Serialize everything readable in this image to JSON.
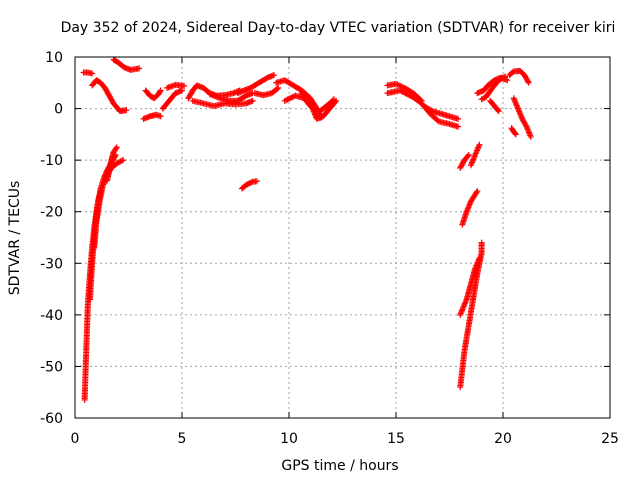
{
  "chart_data": {
    "type": "scatter",
    "title": "Day 352 of 2024, Sidereal Day-to-day VTEC variation (SDTVAR) for receiver kiri",
    "xlabel": "GPS time / hours",
    "ylabel": "SDTVAR / TECUs",
    "xlim": [
      0,
      25
    ],
    "ylim": [
      -60,
      10
    ],
    "xticks": [
      "0",
      "5",
      "10",
      "15",
      "20",
      "25"
    ],
    "yticks": [
      "10",
      "0",
      "-10",
      "-20",
      "-30",
      "-40",
      "-50",
      "-60"
    ],
    "grid": true,
    "marker": "plus",
    "color": "#ff0000",
    "tracks": [
      [
        [
          0.45,
          -56.5
        ],
        [
          0.5,
          -50
        ],
        [
          0.55,
          -44
        ],
        [
          0.6,
          -38
        ],
        [
          0.7,
          -32
        ],
        [
          0.8,
          -27
        ],
        [
          0.9,
          -23
        ],
        [
          1.0,
          -20
        ],
        [
          1.1,
          -17.5
        ],
        [
          1.2,
          -16
        ]
      ],
      [
        [
          0.7,
          -37
        ],
        [
          0.8,
          -30
        ],
        [
          0.9,
          -25
        ],
        [
          1.0,
          -21
        ],
        [
          1.1,
          -18
        ],
        [
          1.2,
          -15.5
        ],
        [
          1.35,
          -13.5
        ],
        [
          1.5,
          -12
        ],
        [
          1.7,
          -10.5
        ],
        [
          1.9,
          -9
        ]
      ],
      [
        [
          0.9,
          -27
        ],
        [
          1.0,
          -22
        ],
        [
          1.15,
          -18
        ],
        [
          1.3,
          -15
        ],
        [
          1.5,
          -13
        ],
        [
          1.7,
          -11.5
        ],
        [
          2.0,
          -10.5
        ],
        [
          2.25,
          -10
        ]
      ],
      [
        [
          1.5,
          -14
        ],
        [
          1.6,
          -12
        ],
        [
          1.7,
          -10
        ],
        [
          1.8,
          -8.5
        ],
        [
          1.95,
          -7.5
        ]
      ],
      [
        [
          0.4,
          7
        ],
        [
          0.6,
          7
        ],
        [
          0.8,
          6.8
        ]
      ],
      [
        [
          0.8,
          4.5
        ],
        [
          1.0,
          5.5
        ],
        [
          1.2,
          5
        ],
        [
          1.4,
          4
        ],
        [
          1.6,
          2.5
        ],
        [
          1.8,
          1
        ],
        [
          2.1,
          -0.5
        ],
        [
          2.4,
          -0.3
        ]
      ],
      [
        [
          1.8,
          9.5
        ],
        [
          2.0,
          9
        ],
        [
          2.3,
          8
        ],
        [
          2.6,
          7.5
        ],
        [
          3.0,
          7.8
        ]
      ],
      [
        [
          3.3,
          3.5
        ],
        [
          3.5,
          2.5
        ],
        [
          3.7,
          2
        ],
        [
          3.9,
          2.8
        ],
        [
          4.0,
          3.5
        ]
      ],
      [
        [
          3.2,
          -2
        ],
        [
          3.5,
          -1.5
        ],
        [
          3.8,
          -1.2
        ],
        [
          4.0,
          -1.5
        ]
      ],
      [
        [
          4.1,
          0
        ],
        [
          4.4,
          1.5
        ],
        [
          4.7,
          3
        ],
        [
          5.0,
          3.5
        ]
      ],
      [
        [
          4.3,
          4
        ],
        [
          4.7,
          4.6
        ],
        [
          5.1,
          4.4
        ]
      ],
      [
        [
          5.3,
          2
        ],
        [
          5.5,
          3.5
        ],
        [
          5.7,
          4.5
        ],
        [
          6.0,
          4
        ],
        [
          6.3,
          3
        ],
        [
          6.6,
          2.5
        ],
        [
          7.0,
          2.6
        ],
        [
          7.4,
          3
        ],
        [
          7.7,
          3.5
        ]
      ],
      [
        [
          5.5,
          1.5
        ],
        [
          6.0,
          1
        ],
        [
          6.5,
          0.5
        ],
        [
          7.0,
          1
        ],
        [
          7.5,
          0.8
        ],
        [
          8.0,
          1
        ],
        [
          8.3,
          1.5
        ]
      ],
      [
        [
          6.3,
          2.8
        ],
        [
          6.8,
          2
        ],
        [
          7.2,
          1.5
        ],
        [
          7.6,
          1.5
        ],
        [
          8.0,
          2.5
        ],
        [
          8.3,
          3
        ]
      ],
      [
        [
          7.6,
          3
        ],
        [
          7.9,
          3.5
        ],
        [
          8.2,
          4
        ],
        [
          8.6,
          5
        ],
        [
          9.0,
          6
        ],
        [
          9.3,
          6.5
        ]
      ],
      [
        [
          7.8,
          -15.5
        ],
        [
          8.0,
          -14.8
        ],
        [
          8.3,
          -14.2
        ],
        [
          8.5,
          -14.1
        ]
      ],
      [
        [
          8.4,
          3
        ],
        [
          8.8,
          2.6
        ],
        [
          9.2,
          3
        ],
        [
          9.5,
          4
        ]
      ],
      [
        [
          9.8,
          1.5
        ],
        [
          10.3,
          2.5
        ],
        [
          10.7,
          2
        ],
        [
          11.1,
          0
        ],
        [
          11.3,
          -2
        ],
        [
          11.6,
          -1.5
        ],
        [
          12.0,
          0.5
        ],
        [
          12.2,
          1.5
        ]
      ],
      [
        [
          10.6,
          3
        ],
        [
          11.0,
          1.5
        ],
        [
          11.3,
          -1
        ],
        [
          11.6,
          0
        ],
        [
          11.9,
          1
        ],
        [
          12.1,
          1.8
        ]
      ],
      [
        [
          9.4,
          5
        ],
        [
          9.8,
          5.5
        ],
        [
          10.2,
          4.5
        ],
        [
          10.6,
          3.5
        ],
        [
          11.0,
          2
        ],
        [
          11.3,
          0
        ],
        [
          11.5,
          -1.8
        ]
      ],
      [
        [
          14.6,
          4.5
        ],
        [
          15.0,
          4.8
        ],
        [
          15.4,
          4
        ],
        [
          15.8,
          3
        ],
        [
          16.2,
          1.5
        ]
      ],
      [
        [
          14.6,
          3
        ],
        [
          15.2,
          3.5
        ],
        [
          15.8,
          2.2
        ],
        [
          16.2,
          1
        ],
        [
          16.6,
          -1
        ],
        [
          17.0,
          -2.5
        ],
        [
          17.5,
          -3
        ],
        [
          17.9,
          -3.5
        ]
      ],
      [
        [
          16.3,
          0.5
        ],
        [
          16.7,
          -0.5
        ],
        [
          17.1,
          -1
        ],
        [
          17.5,
          -1.5
        ],
        [
          17.9,
          -2
        ]
      ],
      [
        [
          18.0,
          -11.5
        ],
        [
          18.2,
          -10
        ],
        [
          18.4,
          -9
        ]
      ],
      [
        [
          18.1,
          -22.5
        ],
        [
          18.3,
          -20
        ],
        [
          18.5,
          -18
        ],
        [
          18.8,
          -16
        ]
      ],
      [
        [
          18.5,
          -11
        ],
        [
          18.7,
          -9
        ],
        [
          18.9,
          -7
        ]
      ],
      [
        [
          18.0,
          -54
        ],
        [
          18.2,
          -47
        ],
        [
          18.4,
          -42
        ],
        [
          18.6,
          -37
        ],
        [
          18.8,
          -32
        ],
        [
          19.0,
          -28
        ],
        [
          19.0,
          -26
        ]
      ],
      [
        [
          18.0,
          -40
        ],
        [
          18.3,
          -37
        ],
        [
          18.5,
          -34
        ],
        [
          18.7,
          -31
        ],
        [
          18.9,
          -29
        ]
      ],
      [
        [
          18.8,
          3
        ],
        [
          19.1,
          3.5
        ],
        [
          19.3,
          4.5
        ],
        [
          19.6,
          5.5
        ],
        [
          19.9,
          6
        ],
        [
          20.2,
          5.5
        ]
      ],
      [
        [
          19.0,
          1.8
        ],
        [
          19.2,
          2.2
        ],
        [
          19.5,
          4
        ],
        [
          19.8,
          5.5
        ],
        [
          20.1,
          6.2
        ]
      ],
      [
        [
          19.4,
          1.5
        ],
        [
          19.6,
          0.5
        ],
        [
          19.8,
          -0.5
        ]
      ],
      [
        [
          20.4,
          -3.8
        ],
        [
          20.5,
          -4.5
        ],
        [
          20.6,
          -5
        ]
      ],
      [
        [
          20.3,
          6.5
        ],
        [
          20.5,
          7.2
        ],
        [
          20.8,
          7.3
        ],
        [
          21.0,
          6.5
        ],
        [
          21.2,
          5
        ]
      ],
      [
        [
          20.5,
          2
        ],
        [
          20.7,
          0
        ],
        [
          20.9,
          -2
        ],
        [
          21.1,
          -3.5
        ],
        [
          21.3,
          -5.5
        ]
      ]
    ]
  }
}
